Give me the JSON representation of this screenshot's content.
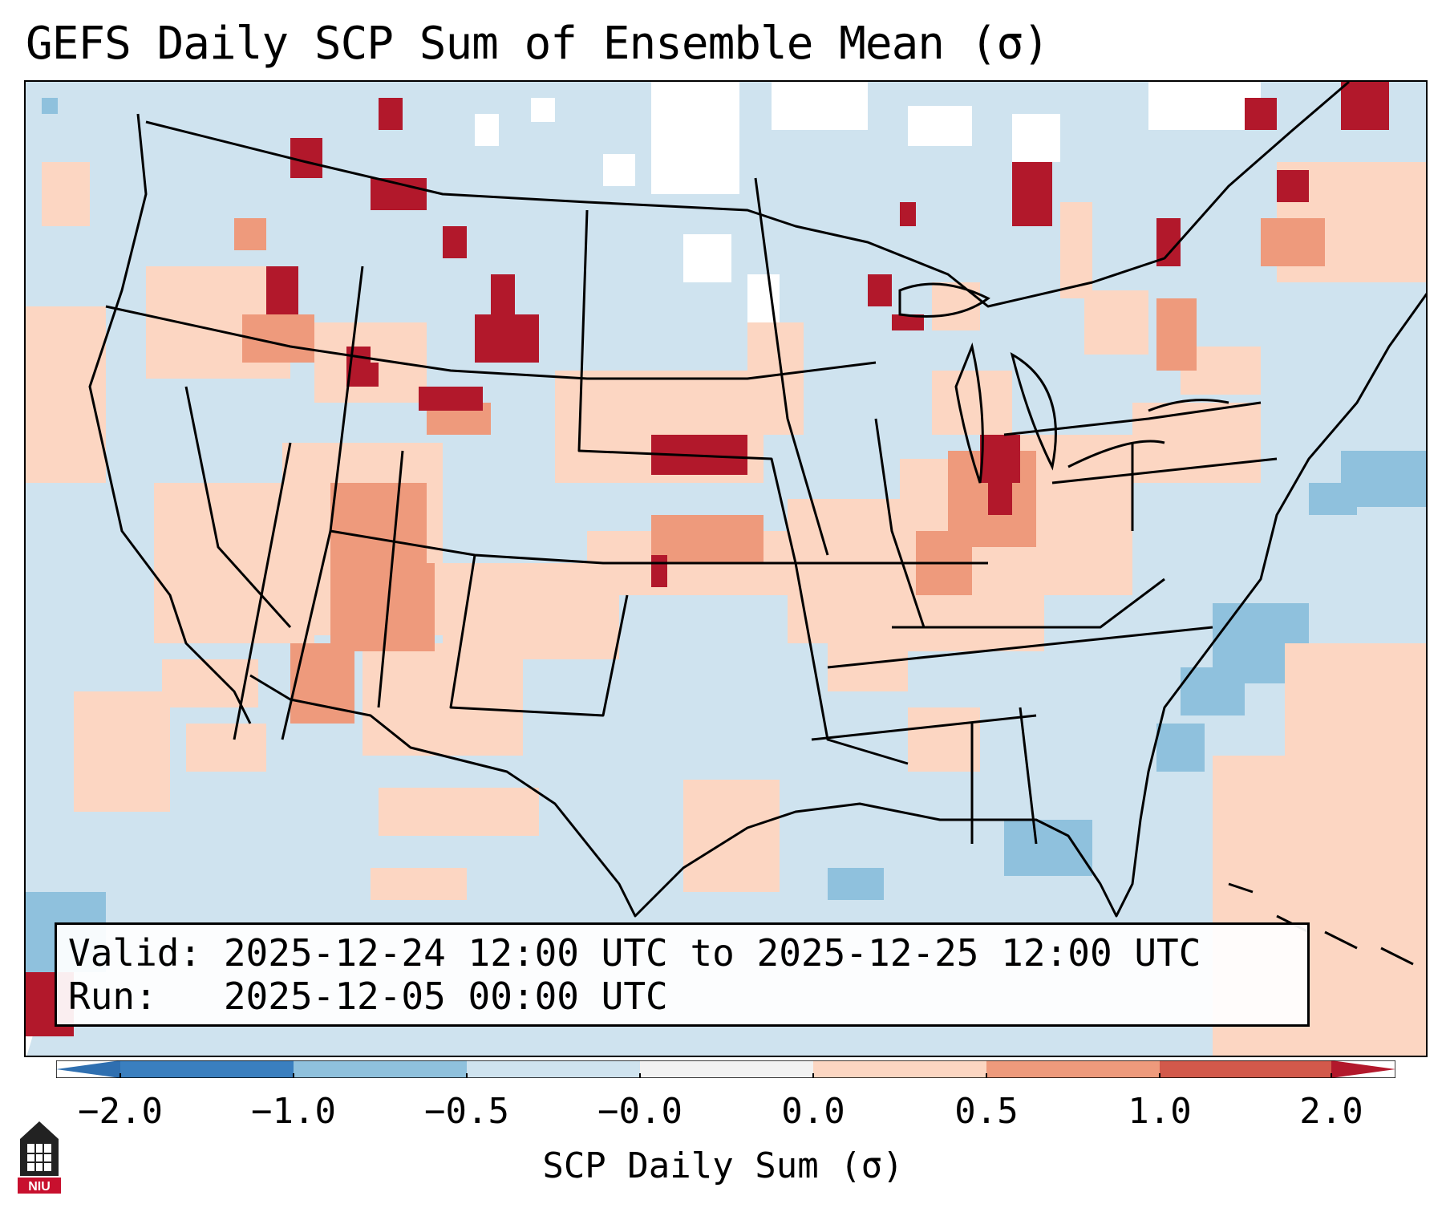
{
  "title": "GEFS Daily SCP Sum of Ensemble Mean (σ)",
  "info": {
    "valid_line": "Valid: 2025-12-24 12:00 UTC to 2025-12-25 12:00 UTC",
    "run_line": "Run:   2025-12-05 00:00 UTC"
  },
  "colorbar": {
    "ticks": [
      "−2.0",
      "−1.0",
      "−0.5",
      "−0.0",
      "0.0",
      "0.5",
      "1.0",
      "2.0"
    ],
    "label": "SCP Daily Sum (σ)",
    "colors": [
      "#3a7fbf",
      "#8fc1dd",
      "#cfe3ef",
      "#f2f2f2",
      "#fcd6c2",
      "#ee9a7c",
      "#d2594b",
      "#b2182b"
    ]
  },
  "logo": {
    "text": "NIU",
    "icon": "niu-logo-icon"
  },
  "map": {
    "region": "Continental United States",
    "background_color": "#cfe3ef"
  }
}
